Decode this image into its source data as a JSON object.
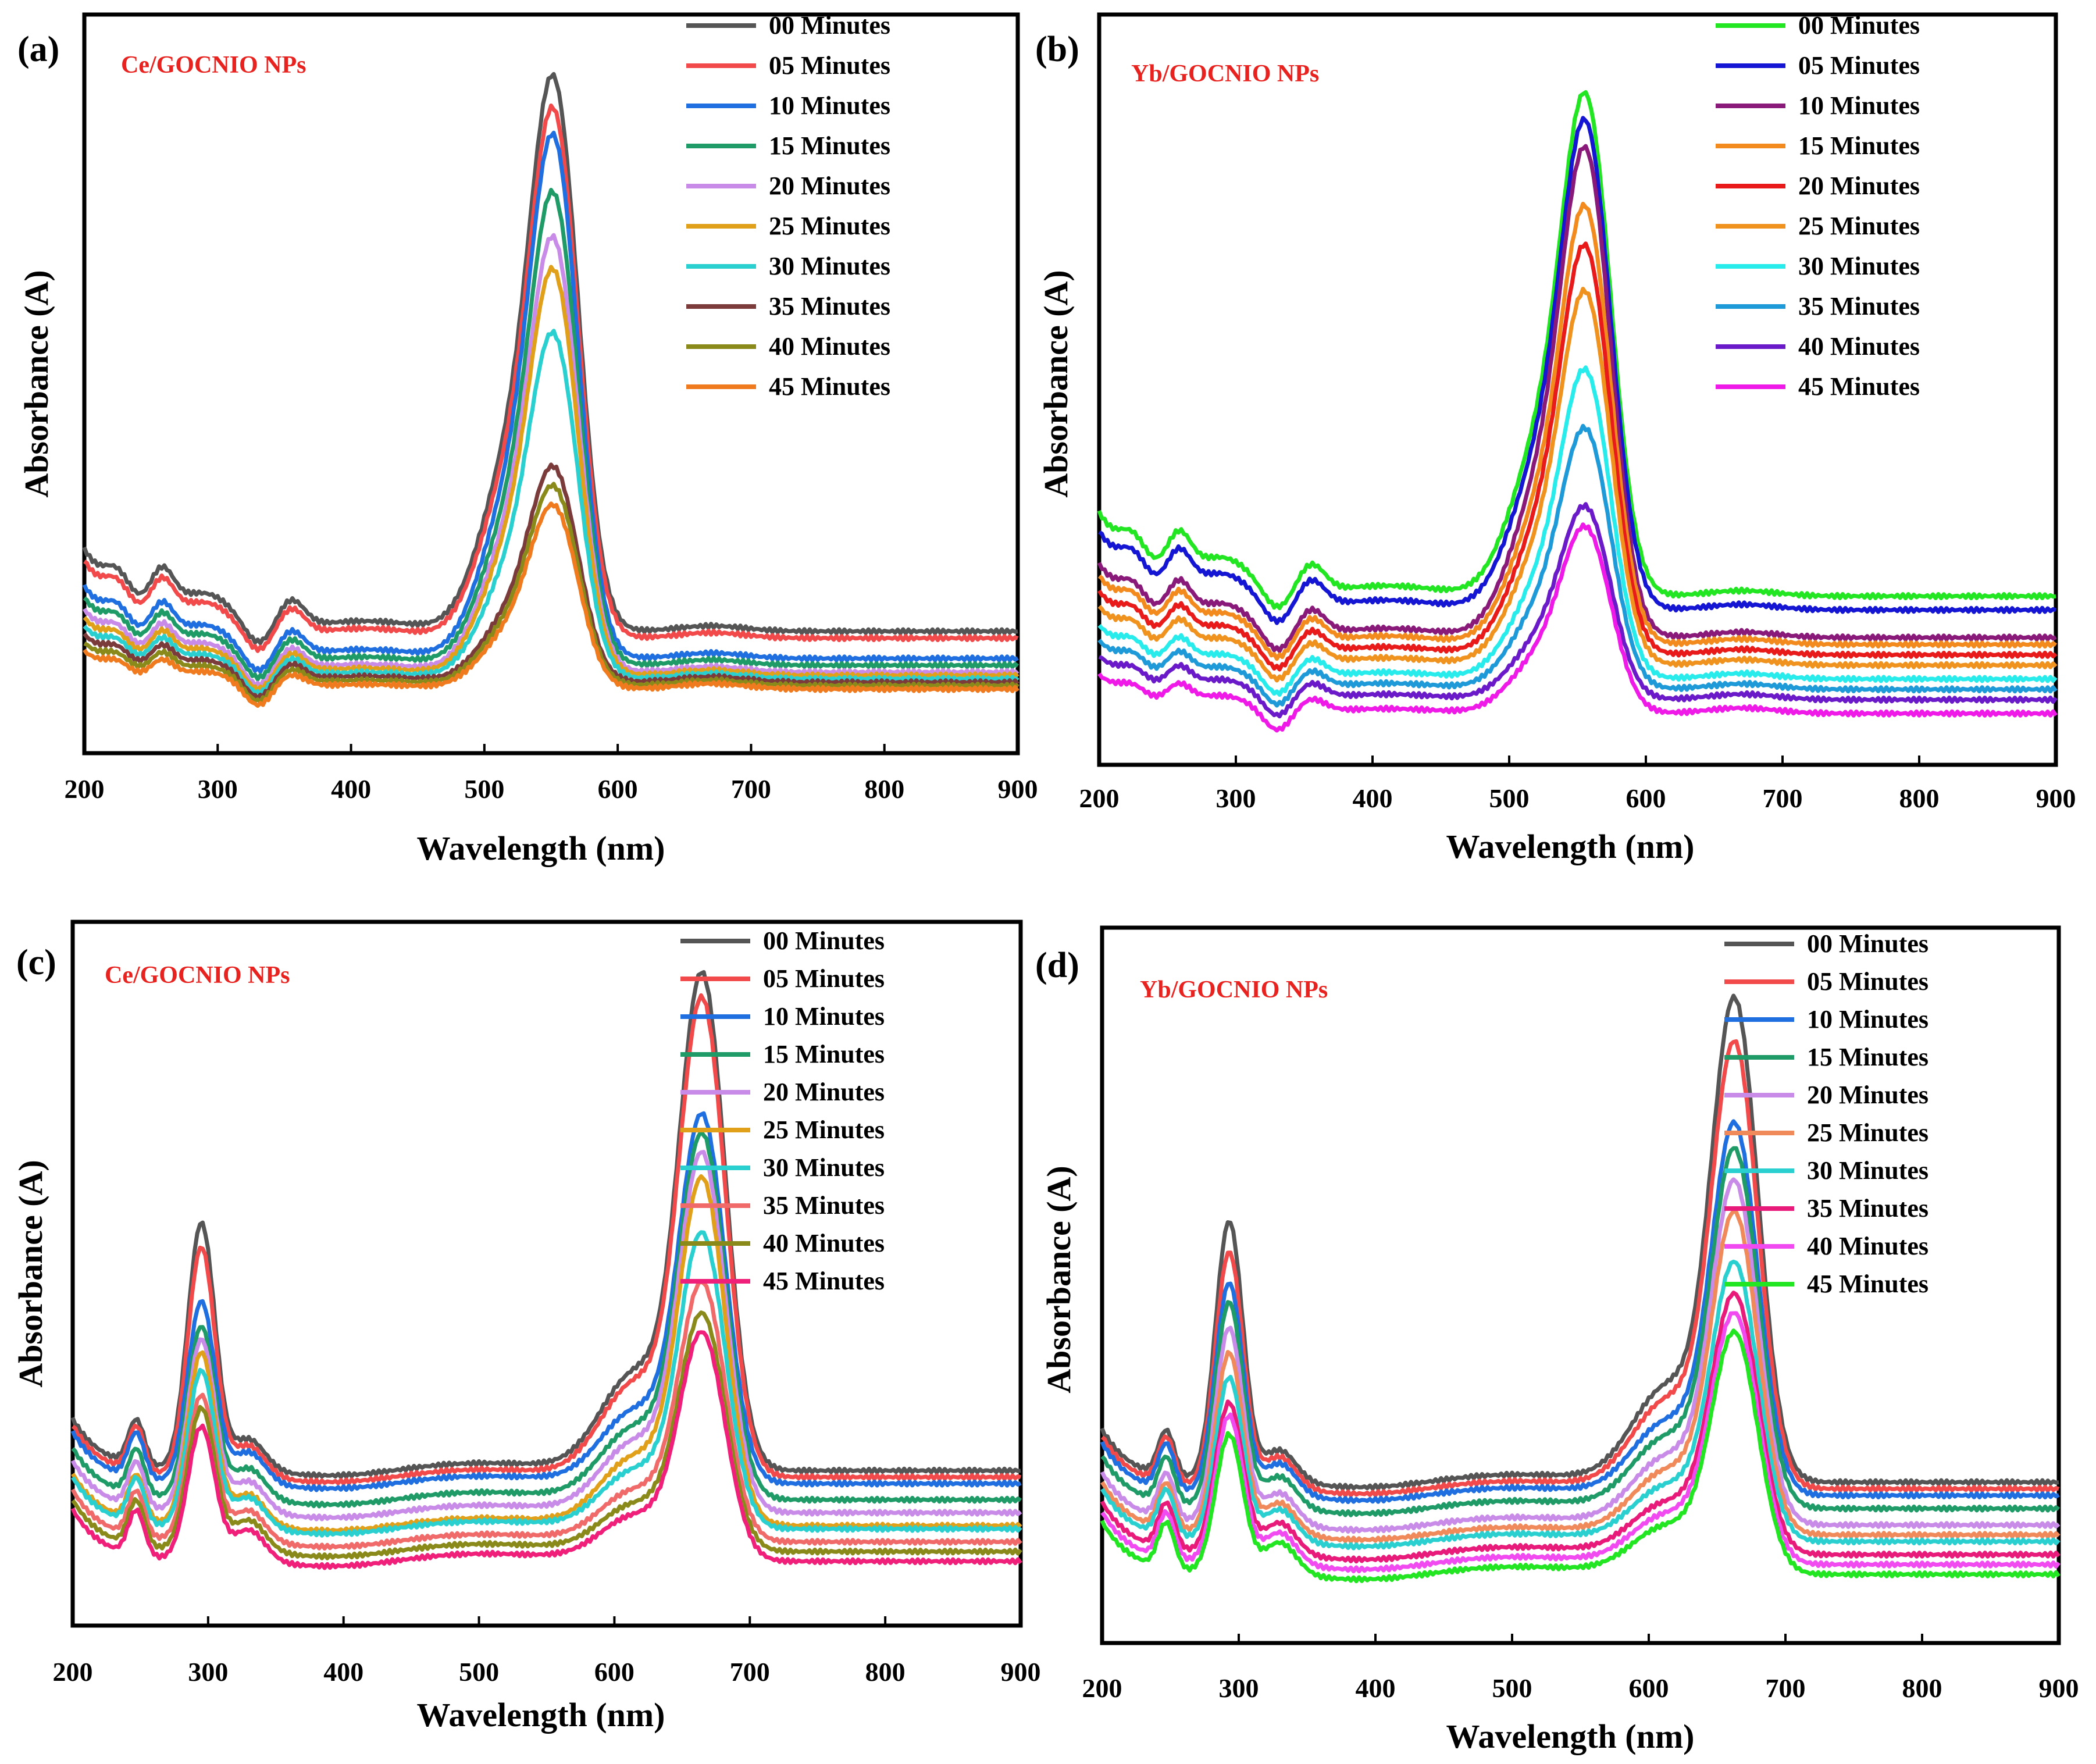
{
  "figure": {
    "description_note": ""
  },
  "colors": {
    "text": "#000000",
    "inset_label": "#e8231f",
    "palette_a": [
      "#555555",
      "#f24a4a",
      "#1f6fe0",
      "#1f9b67",
      "#c98be8",
      "#e0a01a",
      "#2ad0cf",
      "#7b3b3b",
      "#8a8a1a",
      "#f07a1e"
    ],
    "palette_b": [
      "#22e622",
      "#1515d4",
      "#8a1a7a",
      "#f28a1e",
      "#e81a1a",
      "#f0921e",
      "#28ecec",
      "#1f9ad8",
      "#6a1ac8",
      "#f01ae8"
    ],
    "palette_c": [
      "#555555",
      "#f24a4a",
      "#1f6fe0",
      "#1f9b67",
      "#c98be8",
      "#e0a01a",
      "#2ad0cf",
      "#f06a6a",
      "#8a8a1a",
      "#f0207a"
    ],
    "palette_d": [
      "#555555",
      "#f24a4a",
      "#1f6fe0",
      "#1f9b67",
      "#c98be8",
      "#f08a5a",
      "#2ad0cf",
      "#e81a7a",
      "#f04af0",
      "#22e622"
    ]
  },
  "legend_labels": [
    "00 Minutes",
    "05 Minutes",
    "10 Minutes",
    "15 Minutes",
    "20 Minutes",
    "25 Minutes",
    "30 Minutes",
    "35 Minutes",
    "40 Minutes",
    "45 Minutes"
  ],
  "chart_data": [
    {
      "panel_label": "(a)",
      "inset_text": "Ce/GOCNIO NPs",
      "type": "line",
      "xlabel": "Wavelength (nm)",
      "ylabel": "Absorbance (A)",
      "xlim": [
        200,
        900
      ],
      "ylim": [
        0,
        1
      ],
      "xticks": [
        "200",
        "300",
        "400",
        "500",
        "600",
        "700",
        "800",
        "900"
      ],
      "legend_placement": "top-right",
      "peak_nm": 553,
      "series": [
        {
          "name": "00 Minutes",
          "baseline": 0.125,
          "peak": 1.0
        },
        {
          "name": "05 Minutes",
          "baseline": 0.115,
          "peak": 0.95
        },
        {
          "name": "10 Minutes",
          "baseline": 0.085,
          "peak": 0.91
        },
        {
          "name": "15 Minutes",
          "baseline": 0.075,
          "peak": 0.82
        },
        {
          "name": "20 Minutes",
          "baseline": 0.065,
          "peak": 0.75
        },
        {
          "name": "25 Minutes",
          "baseline": 0.06,
          "peak": 0.7
        },
        {
          "name": "30 Minutes",
          "baseline": 0.055,
          "peak": 0.6
        },
        {
          "name": "35 Minutes",
          "baseline": 0.05,
          "peak": 0.39
        },
        {
          "name": "40 Minutes",
          "baseline": 0.045,
          "peak": 0.36
        },
        {
          "name": "45 Minutes",
          "baseline": 0.04,
          "peak": 0.33
        }
      ]
    },
    {
      "panel_label": "(b)",
      "inset_text": "Yb/GOCNIO NPs",
      "type": "line",
      "xlabel": "Wavelength  (nm)",
      "ylabel": "Absorbance (A)",
      "xlim": [
        200,
        900
      ],
      "ylim": [
        0,
        1
      ],
      "xticks": [
        "200",
        "300",
        "400",
        "500",
        "600",
        "700",
        "800",
        "900"
      ],
      "legend_placement": "top-right",
      "peak_nm": 557,
      "series": [
        {
          "name": "00 Minutes",
          "baseline": 0.19,
          "peak": 0.97
        },
        {
          "name": "05 Minutes",
          "baseline": 0.17,
          "peak": 0.93
        },
        {
          "name": "10 Minutes",
          "baseline": 0.13,
          "peak": 0.89
        },
        {
          "name": "15 Minutes",
          "baseline": 0.12,
          "peak": 0.8
        },
        {
          "name": "20 Minutes",
          "baseline": 0.105,
          "peak": 0.74
        },
        {
          "name": "25 Minutes",
          "baseline": 0.09,
          "peak": 0.67
        },
        {
          "name": "30 Minutes",
          "baseline": 0.07,
          "peak": 0.55
        },
        {
          "name": "35 Minutes",
          "baseline": 0.055,
          "peak": 0.46
        },
        {
          "name": "40 Minutes",
          "baseline": 0.04,
          "peak": 0.34
        },
        {
          "name": "45 Minutes",
          "baseline": 0.02,
          "peak": 0.31
        }
      ]
    },
    {
      "panel_label": "(c)",
      "inset_text": "Ce/GOCNIO NPs",
      "type": "line",
      "xlabel": "Wavelength (nm)",
      "ylabel": "Absorbance (A)",
      "xlim": [
        200,
        900
      ],
      "ylim": [
        0,
        1
      ],
      "xticks": [
        "200",
        "300",
        "400",
        "500",
        "600",
        "700",
        "800",
        "900"
      ],
      "legend_placement": "top-right",
      "peaks_nm": [
        295,
        665
      ],
      "series": [
        {
          "name": "00 Minutes",
          "baseline": 0.185,
          "peak": 1.0,
          "peak2": 0.6
        },
        {
          "name": "05 Minutes",
          "baseline": 0.175,
          "peak": 0.96,
          "peak2": 0.56
        },
        {
          "name": "10 Minutes",
          "baseline": 0.165,
          "peak": 0.77,
          "peak2": 0.47
        },
        {
          "name": "15 Minutes",
          "baseline": 0.14,
          "peak": 0.74,
          "peak2": 0.43
        },
        {
          "name": "20 Minutes",
          "baseline": 0.12,
          "peak": 0.71,
          "peak2": 0.41
        },
        {
          "name": "25 Minutes",
          "baseline": 0.1,
          "peak": 0.67,
          "peak2": 0.39
        },
        {
          "name": "30 Minutes",
          "baseline": 0.095,
          "peak": 0.58,
          "peak2": 0.36
        },
        {
          "name": "35 Minutes",
          "baseline": 0.075,
          "peak": 0.5,
          "peak2": 0.32
        },
        {
          "name": "40 Minutes",
          "baseline": 0.06,
          "peak": 0.45,
          "peak2": 0.3
        },
        {
          "name": "45 Minutes",
          "baseline": 0.045,
          "peak": 0.42,
          "peak2": 0.27
        }
      ]
    },
    {
      "panel_label": "(d)",
      "inset_text": "Yb/GOCNIO NPs",
      "type": "line",
      "xlabel": "Wavelength (nm)",
      "ylabel": "Absorbance (A)",
      "xlim": [
        200,
        900
      ],
      "ylim": [
        0,
        1
      ],
      "xticks": [
        "200",
        "300",
        "400",
        "500",
        "600",
        "700",
        "800",
        "900"
      ],
      "legend_placement": "top-right",
      "peaks_nm": [
        293,
        663
      ],
      "series": [
        {
          "name": "00 Minutes",
          "baseline": 0.19,
          "peak": 0.97,
          "peak2": 0.62
        },
        {
          "name": "05 Minutes",
          "baseline": 0.18,
          "peak": 0.9,
          "peak2": 0.57
        },
        {
          "name": "10 Minutes",
          "baseline": 0.17,
          "peak": 0.77,
          "peak2": 0.52
        },
        {
          "name": "15 Minutes",
          "baseline": 0.15,
          "peak": 0.73,
          "peak2": 0.49
        },
        {
          "name": "20 Minutes",
          "baseline": 0.125,
          "peak": 0.68,
          "peak2": 0.45
        },
        {
          "name": "25 Minutes",
          "baseline": 0.11,
          "peak": 0.63,
          "peak2": 0.41
        },
        {
          "name": "30 Minutes",
          "baseline": 0.1,
          "peak": 0.55,
          "peak2": 0.37
        },
        {
          "name": "35 Minutes",
          "baseline": 0.08,
          "peak": 0.5,
          "peak2": 0.33
        },
        {
          "name": "40 Minutes",
          "baseline": 0.065,
          "peak": 0.47,
          "peak2": 0.31
        },
        {
          "name": "45 Minutes",
          "baseline": 0.05,
          "peak": 0.44,
          "peak2": 0.28
        }
      ]
    }
  ]
}
